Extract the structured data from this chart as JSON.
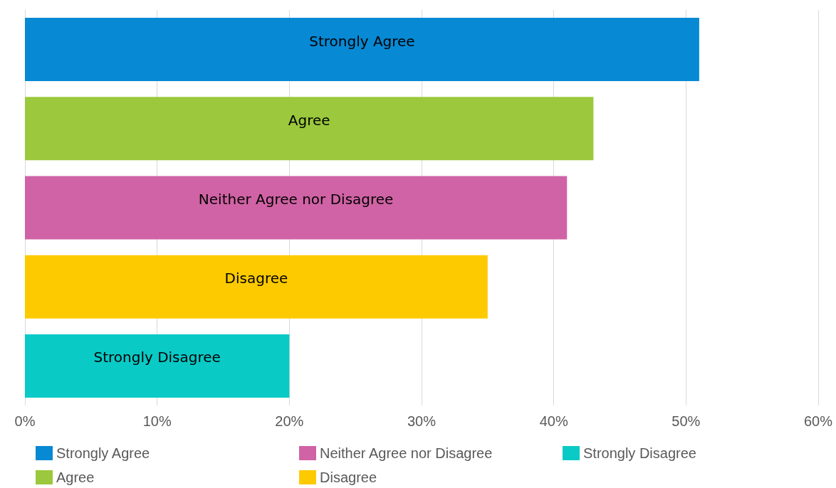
{
  "chart_data": {
    "type": "bar",
    "orientation": "horizontal",
    "categories": [
      null,
      null,
      null,
      null,
      null
    ],
    "series": [
      {
        "name": "Strongly Agree",
        "color": "#0789d4",
        "values": [
          51,
          null,
          null,
          null,
          null
        ]
      },
      {
        "name": "Agree",
        "color": "#9bc83c",
        "values": [
          null,
          43,
          null,
          null,
          null
        ]
      },
      {
        "name": "Neither Agree nor Disagree",
        "color": "#d063a5",
        "values": [
          null,
          null,
          41,
          null,
          null
        ]
      },
      {
        "name": "Disagree",
        "color": "#fdca00",
        "values": [
          null,
          null,
          null,
          35,
          null
        ]
      },
      {
        "name": "Strongly Disagree",
        "color": "#0acac6",
        "values": [
          null,
          null,
          null,
          null,
          20
        ]
      }
    ],
    "xlim": [
      0,
      60
    ],
    "xticks": [
      {
        "value": 0,
        "label": "0%"
      },
      {
        "value": 10,
        "label": "10%"
      },
      {
        "value": 20,
        "label": "20%"
      },
      {
        "value": 30,
        "label": "30%"
      },
      {
        "value": 40,
        "label": "40%"
      },
      {
        "value": 50,
        "label": "50%"
      },
      {
        "value": 60,
        "label": "60%"
      }
    ],
    "grid": "x",
    "legend": "bottom",
    "tick_labels": "x"
  }
}
